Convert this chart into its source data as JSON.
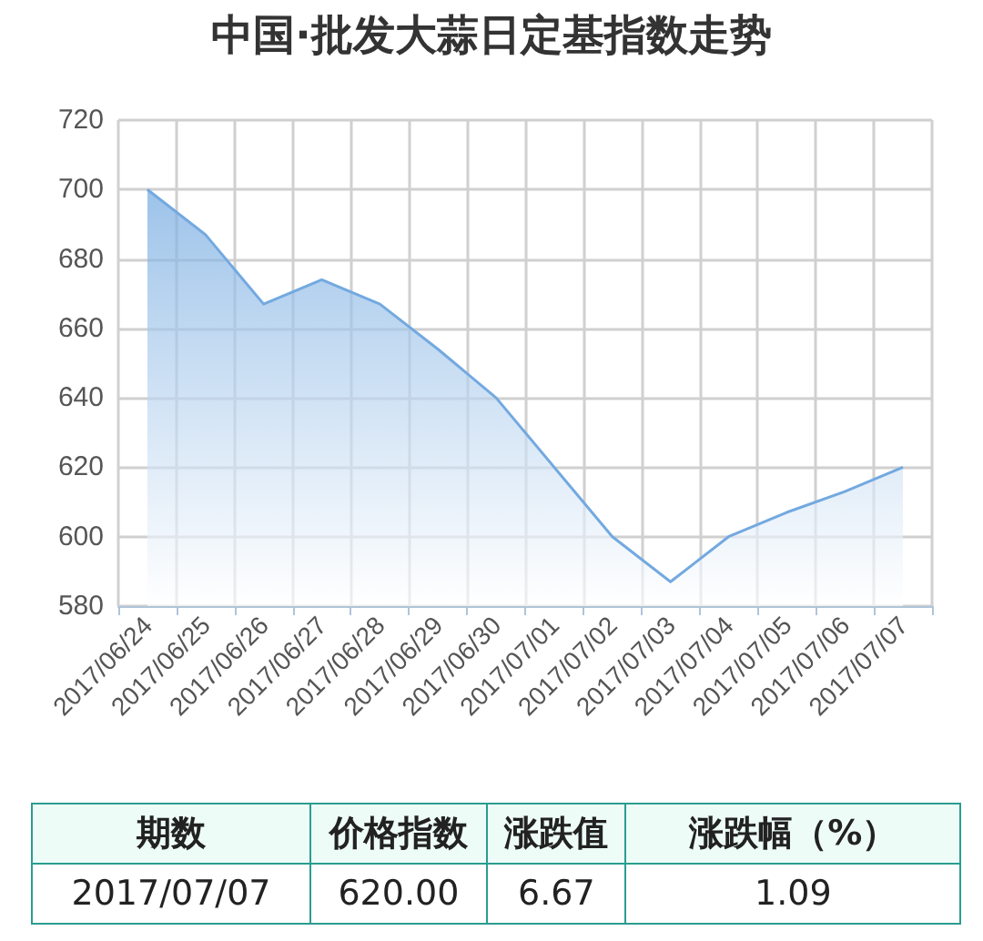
{
  "chart_data": {
    "type": "area",
    "title": "中国·批发大蒜日定基指数走势",
    "categories": [
      "2017/06/24",
      "2017/06/25",
      "2017/06/26",
      "2017/06/27",
      "2017/06/28",
      "2017/06/29",
      "2017/06/30",
      "2017/07/01",
      "2017/07/02",
      "2017/07/03",
      "2017/07/04",
      "2017/07/05",
      "2017/07/06",
      "2017/07/07"
    ],
    "series": [
      {
        "color": "#73a9e0",
        "values": [
          700,
          687,
          667,
          674,
          667,
          654,
          640,
          620,
          600,
          587,
          600,
          607,
          613,
          620
        ]
      }
    ],
    "ylim": [
      580,
      720
    ],
    "yticks": [
      580,
      600,
      620,
      640,
      660,
      680,
      700,
      720
    ],
    "grid": true,
    "marker": "none",
    "annotations": [
      "期数",
      "价格指数",
      "涨跌值",
      "涨跌幅（%）",
      "2017/07/07",
      "620.00",
      "6.67",
      "1.09"
    ]
  }
}
